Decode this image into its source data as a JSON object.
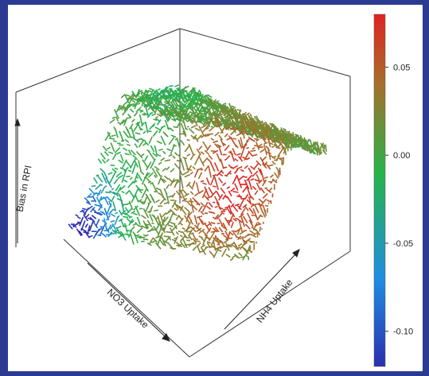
{
  "chart_data": {
    "type": "surface",
    "title": "",
    "x_axis": {
      "label": "NO3 Uptake"
    },
    "y_axis": {
      "label": "NH4 Uptake"
    },
    "z_axis": {
      "label": "Bias in RPI"
    },
    "colorbar": {
      "min": -0.12,
      "max": 0.08,
      "ticks": [
        {
          "value": 0.05,
          "label": "0.05"
        },
        {
          "value": 0.0,
          "label": "0.00"
        },
        {
          "value": -0.05,
          "label": "-0.05"
        },
        {
          "value": -0.1,
          "label": "-0.10"
        }
      ],
      "colors": [
        "#2b2fb0",
        "#1f8ee0",
        "#26b44a",
        "#a5702a",
        "#e02222"
      ]
    },
    "surface_summary": {
      "bias_range": [
        -0.12,
        0.07
      ],
      "low_corner": "low NO3 uptake, low NH4 uptake",
      "high_region": "mid NO3 uptake, low NH4 uptake"
    }
  }
}
